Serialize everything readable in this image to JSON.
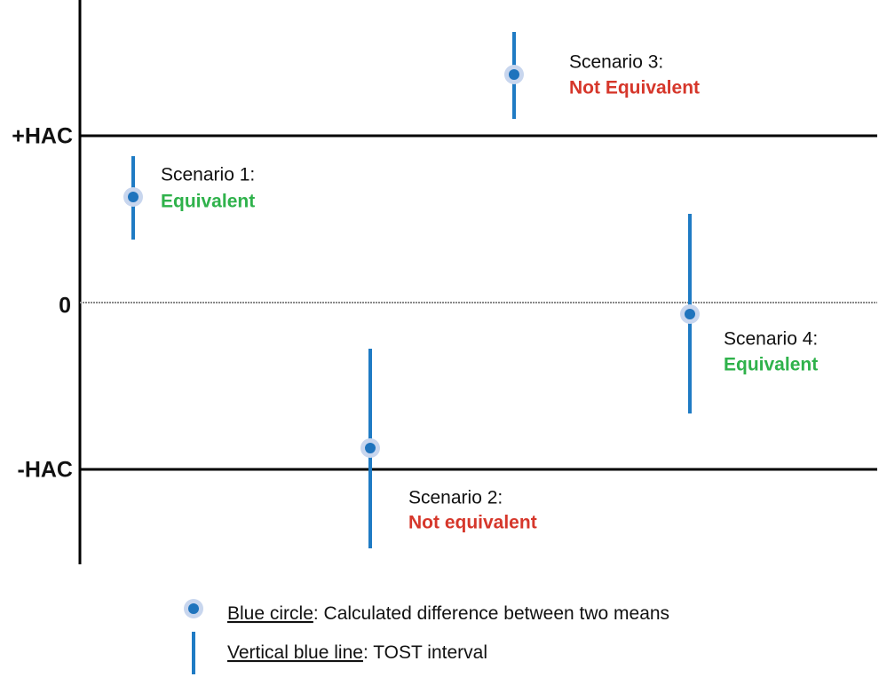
{
  "axis": {
    "labels": [
      "+HAC",
      "0",
      "-HAC"
    ]
  },
  "scenarios": [
    {
      "label": "Scenario 1:",
      "verdict": "Equivalent"
    },
    {
      "label": "Scenario 2:",
      "verdict": "Not equivalent"
    },
    {
      "label": "Scenario 3:",
      "verdict": "Not Equivalent"
    },
    {
      "label": "Scenario 4:",
      "verdict": "Equivalent"
    }
  ],
  "legend": [
    {
      "term": "Blue circle",
      "description": ": Calculated difference between two means"
    },
    {
      "term": "Vertical blue line",
      "description": ": TOST interval"
    }
  ]
}
